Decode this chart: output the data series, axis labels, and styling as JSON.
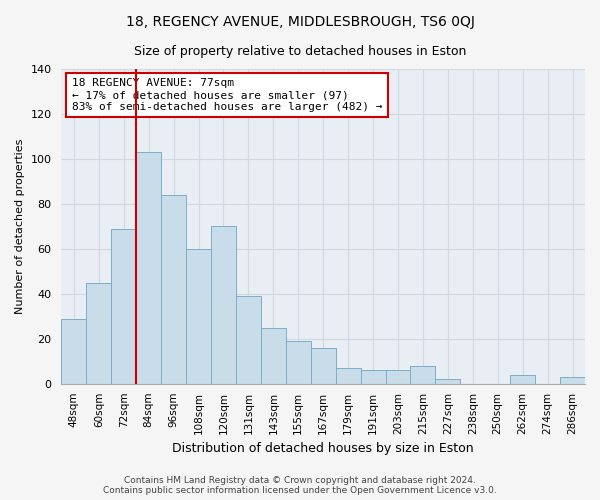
{
  "title": "18, REGENCY AVENUE, MIDDLESBROUGH, TS6 0QJ",
  "subtitle": "Size of property relative to detached houses in Eston",
  "xlabel": "Distribution of detached houses by size in Eston",
  "ylabel": "Number of detached properties",
  "bar_color": "#c8dcea",
  "bar_edge_color": "#7aaec8",
  "plot_bg_color": "#e8eef4",
  "fig_bg_color": "#f5f5f5",
  "categories": [
    "48sqm",
    "60sqm",
    "72sqm",
    "84sqm",
    "96sqm",
    "108sqm",
    "120sqm",
    "131sqm",
    "143sqm",
    "155sqm",
    "167sqm",
    "179sqm",
    "191sqm",
    "203sqm",
    "215sqm",
    "227sqm",
    "238sqm",
    "250sqm",
    "262sqm",
    "274sqm",
    "286sqm"
  ],
  "values": [
    29,
    45,
    69,
    103,
    84,
    60,
    70,
    39,
    25,
    19,
    16,
    7,
    6,
    6,
    8,
    2,
    0,
    0,
    4,
    0,
    3
  ],
  "ylim": [
    0,
    140
  ],
  "yticks": [
    0,
    20,
    40,
    60,
    80,
    100,
    120,
    140
  ],
  "vline_index": 2,
  "vline_color": "#cc0000",
  "annotation_text": "18 REGENCY AVENUE: 77sqm\n← 17% of detached houses are smaller (97)\n83% of semi-detached houses are larger (482) →",
  "annotation_box_color": "#ffffff",
  "annotation_box_edge": "#cc0000",
  "grid_color": "#d0d8e0",
  "footer_line1": "Contains HM Land Registry data © Crown copyright and database right 2024.",
  "footer_line2": "Contains public sector information licensed under the Open Government Licence v3.0."
}
